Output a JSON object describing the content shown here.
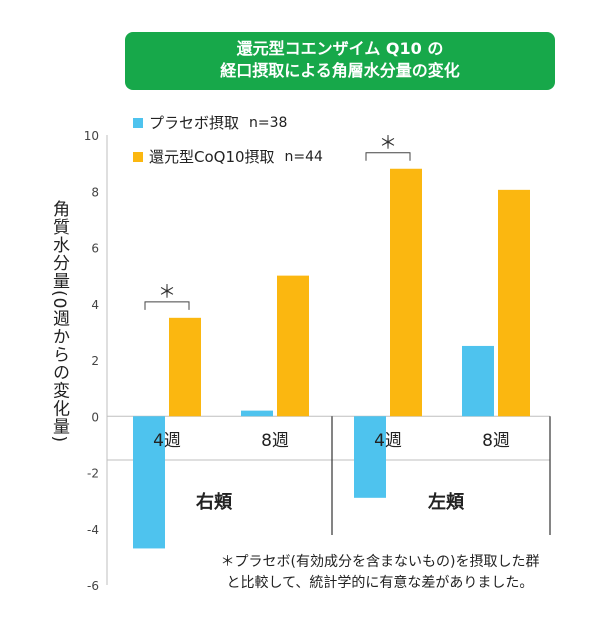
{
  "title": {
    "line1": "還元型コエンザイム Q10 の",
    "line2": "経口摂取による角層水分量の変化"
  },
  "legend": [
    {
      "label": "プラセボ摂取",
      "n": "n=38",
      "color": "#4ec3ee"
    },
    {
      "label": "還元型CoQ10摂取",
      "n": "n=44",
      "color": "#fbb710"
    }
  ],
  "ylabel": "角質水分量(0週からの変化量)",
  "group_labels": [
    "右頬",
    "左頬"
  ],
  "footnote": {
    "line1": "＊プラセボ(有効成分を含まないもの)を摂取した群",
    "line2": "と比較して、統計学的に有意な差がありました。"
  },
  "chart_data": {
    "type": "bar",
    "categories": [
      "4週",
      "8週",
      "4週",
      "8週"
    ],
    "groups": [
      {
        "name": "右頬",
        "categories": [
          "4週",
          "8週"
        ]
      },
      {
        "name": "左頬",
        "categories": [
          "4週",
          "8週"
        ]
      }
    ],
    "series": [
      {
        "name": "プラセボ摂取",
        "values": [
          -4.7,
          0.2,
          -2.9,
          2.5
        ]
      },
      {
        "name": "還元型CoQ10摂取",
        "values": [
          3.5,
          5.0,
          8.8,
          8.05
        ]
      }
    ],
    "significance": [
      {
        "category_index": 0,
        "marker": "＊"
      },
      {
        "category_index": 2,
        "marker": "＊"
      }
    ],
    "ylim": [
      -6,
      10
    ],
    "yticks": [
      "10",
      "8",
      "6",
      "4",
      "2",
      "0",
      "-2",
      "-4",
      "-6"
    ],
    "ylabel": "角質水分量(0週からの変化量)",
    "grid": false
  }
}
